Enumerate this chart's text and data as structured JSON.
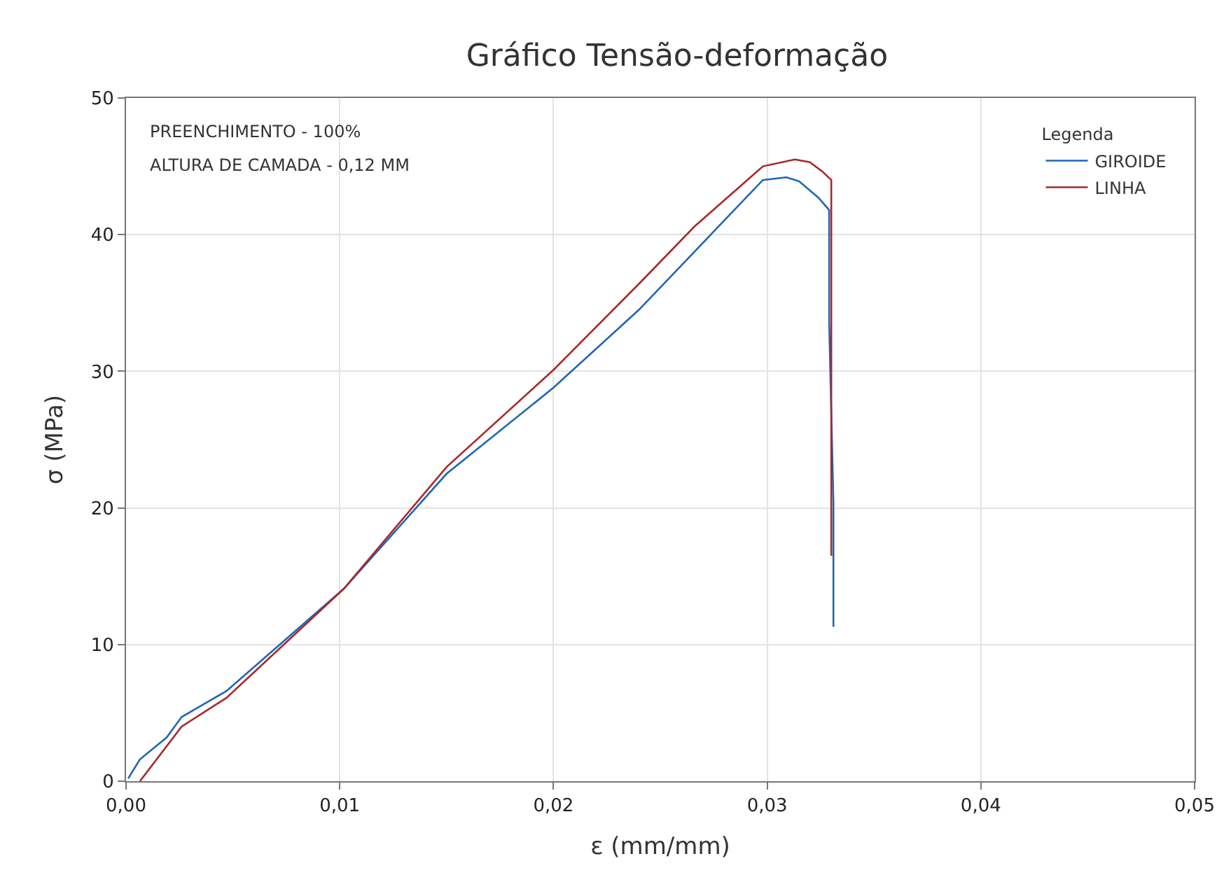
{
  "chart_data": {
    "type": "line",
    "title": "Gráfico Tensão-deformação",
    "xlabel": "ε (mm/mm)",
    "ylabel": "σ (MPa)",
    "legend_title": "Legenda",
    "legend": "top right",
    "grid": true,
    "marker": "none",
    "line_style": "solid",
    "xlim": [
      0,
      0.05
    ],
    "ylim": [
      0,
      50
    ],
    "xticks": [
      {
        "value": 0,
        "label": "0,00"
      },
      {
        "value": 0.01,
        "label": "0,01"
      },
      {
        "value": 0.02,
        "label": "0,02"
      },
      {
        "value": 0.03,
        "label": "0,03"
      },
      {
        "value": 0.04,
        "label": "0,04"
      },
      {
        "value": 0.05,
        "label": "0,05"
      }
    ],
    "yticks": [
      0,
      10,
      20,
      30,
      40,
      50
    ],
    "annotations": [
      "PREENCHIMENTO - 100%",
      "ALTURA DE CAMADA - 0,12 MM"
    ],
    "series": [
      {
        "name": "GIROIDE",
        "color": "#1f66b5",
        "x": [
          0.0001,
          0.00065,
          0.0019,
          0.0026,
          0.0047,
          0.0102,
          0.015,
          0.02,
          0.024,
          0.0298,
          0.0309,
          0.0315,
          0.0324,
          0.0329,
          0.0329,
          0.0331,
          0.0331
        ],
        "values": [
          0.2,
          1.6,
          3.2,
          4.7,
          6.6,
          14.1,
          22.5,
          28.8,
          34.5,
          44.0,
          44.2,
          43.9,
          42.7,
          41.8,
          33.6,
          20.4,
          11.3
        ]
      },
      {
        "name": "LINHA",
        "color": "#a8282a",
        "x": [
          0.00065,
          0.0026,
          0.0047,
          0.0102,
          0.015,
          0.02,
          0.024,
          0.0266,
          0.0298,
          0.0313,
          0.032,
          0.0326,
          0.033,
          0.033
        ],
        "values": [
          0,
          4.0,
          6.1,
          14.1,
          23.0,
          30.1,
          36.4,
          40.6,
          45.0,
          45.5,
          45.3,
          44.6,
          44.0,
          16.5
        ]
      }
    ]
  }
}
